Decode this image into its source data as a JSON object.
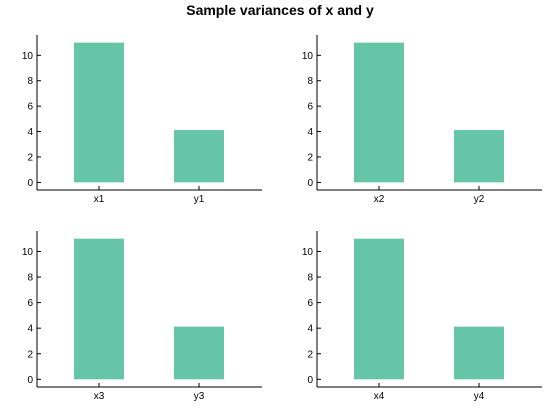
{
  "title": "Sample variances of x and y",
  "colors": {
    "bar": "#66c5a6",
    "axis": "#000000"
  },
  "chart_data": [
    {
      "type": "bar",
      "categories": [
        "x1",
        "y1"
      ],
      "values": [
        11.0,
        4.12
      ],
      "ylim": [
        -0.6,
        11.6
      ],
      "yticks": [
        0,
        2,
        4,
        6,
        8,
        10
      ]
    },
    {
      "type": "bar",
      "categories": [
        "x2",
        "y2"
      ],
      "values": [
        11.0,
        4.12
      ],
      "ylim": [
        -0.6,
        11.6
      ],
      "yticks": [
        0,
        2,
        4,
        6,
        8,
        10
      ]
    },
    {
      "type": "bar",
      "categories": [
        "x3",
        "y3"
      ],
      "values": [
        11.0,
        4.12
      ],
      "ylim": [
        -0.6,
        11.6
      ],
      "yticks": [
        0,
        2,
        4,
        6,
        8,
        10
      ]
    },
    {
      "type": "bar",
      "categories": [
        "x4",
        "y4"
      ],
      "values": [
        11.0,
        4.12
      ],
      "ylim": [
        -0.6,
        11.6
      ],
      "yticks": [
        0,
        2,
        4,
        6,
        8,
        10
      ]
    }
  ]
}
